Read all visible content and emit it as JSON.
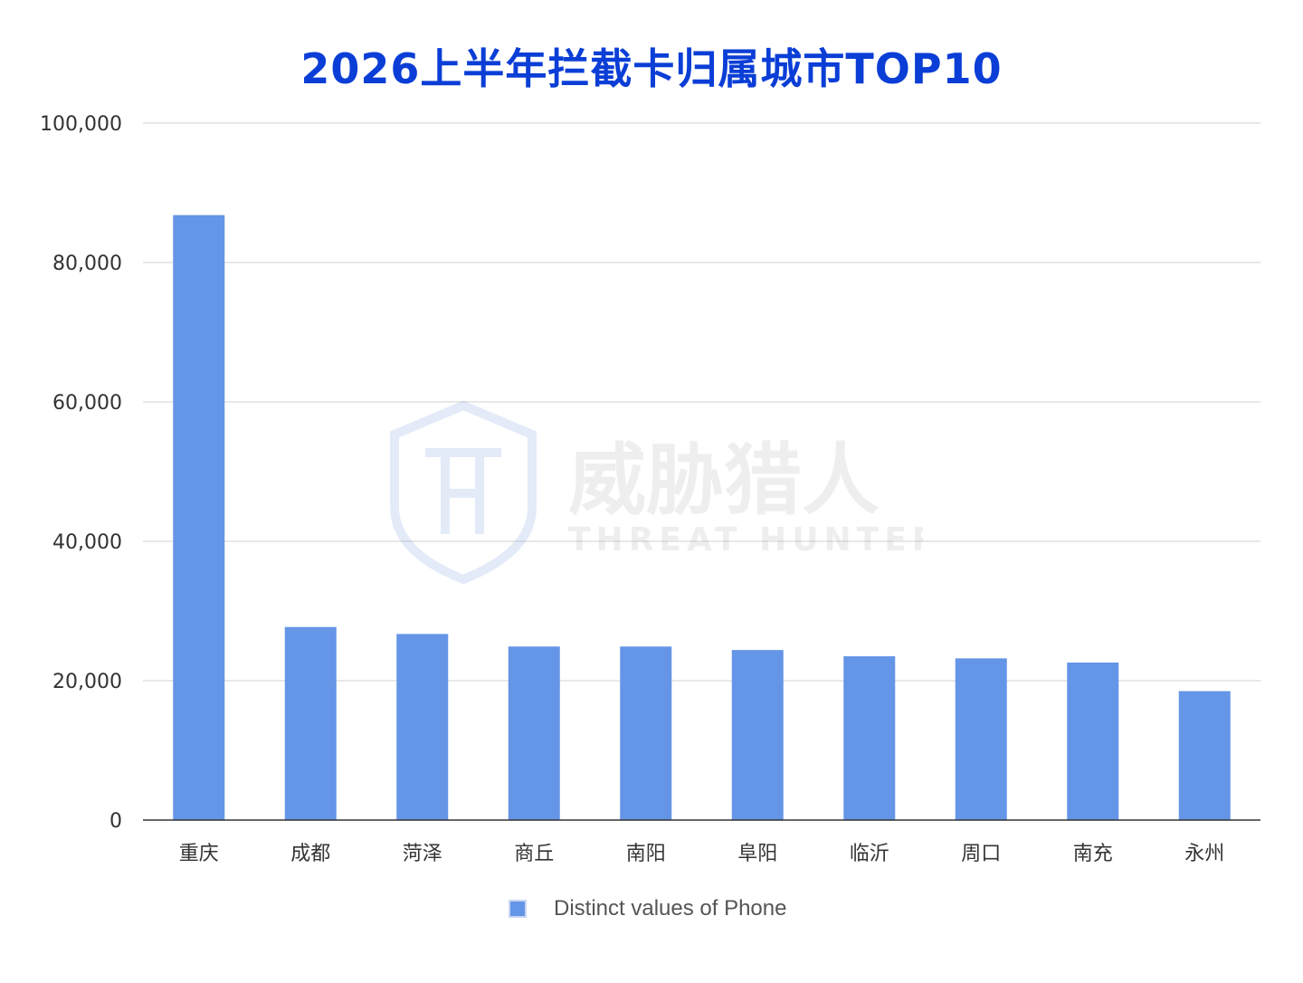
{
  "chart_data": {
    "type": "bar",
    "title": "2026上半年拦截卡归属城市TOP10",
    "categories": [
      "重庆",
      "成都",
      "菏泽",
      "商丘",
      "南阳",
      "阜阳",
      "临沂",
      "周口",
      "南充",
      "永州"
    ],
    "series": [
      {
        "name": "Distinct values of Phone",
        "values": [
          86800,
          27700,
          26700,
          24900,
          24900,
          24400,
          23500,
          23200,
          22600,
          18500
        ],
        "color": "#6495e6"
      }
    ],
    "ylim": [
      0,
      100000
    ],
    "yticks": [
      0,
      20000,
      40000,
      60000,
      80000,
      100000
    ],
    "ytick_labels": [
      "0",
      "20,000",
      "40,000",
      "60,000",
      "80,000",
      "100,000"
    ],
    "xlabel": "",
    "ylabel": "",
    "grid": true,
    "legend_position": "bottom-center"
  },
  "watermark": {
    "text_cn": "威胁猎人",
    "text_en": "THREAT HUNTER",
    "color": "#5a7fd6"
  },
  "colors": {
    "title": "#0b3ed6",
    "bar": "#6495e6",
    "grid": "#e0e0e0",
    "axis": "#333333"
  }
}
